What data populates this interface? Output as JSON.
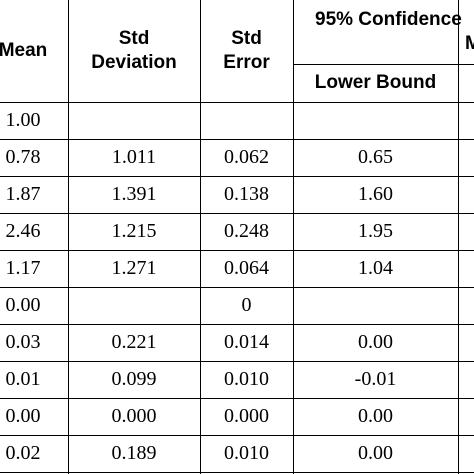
{
  "table": {
    "headers": {
      "mean": "Mean",
      "std_deviation": [
        "Std",
        "Deviation"
      ],
      "std_error": [
        "Std",
        "Error"
      ],
      "confidence": [
        "95% Confidence",
        "Mean"
      ],
      "lower_bound": "Lower Bound"
    },
    "rows": [
      [
        "1.00",
        null,
        null,
        null
      ],
      [
        "0.78",
        "1.011",
        "0.062",
        "0.65"
      ],
      [
        "1.87",
        "1.391",
        "0.138",
        "1.60"
      ],
      [
        "2.46",
        "1.215",
        "0.248",
        "1.95"
      ],
      [
        "1.17",
        "1.271",
        "0.064",
        "1.04"
      ],
      [
        "0.00",
        null,
        "0",
        null
      ],
      [
        "0.03",
        "0.221",
        "0.014",
        "0.00"
      ],
      [
        "0.01",
        "0.099",
        "0.010",
        "-0.01"
      ],
      [
        "0.00",
        "0.000",
        "0.000",
        "0.00"
      ],
      [
        "0.02",
        "0.189",
        "0.010",
        "0.00"
      ]
    ]
  }
}
